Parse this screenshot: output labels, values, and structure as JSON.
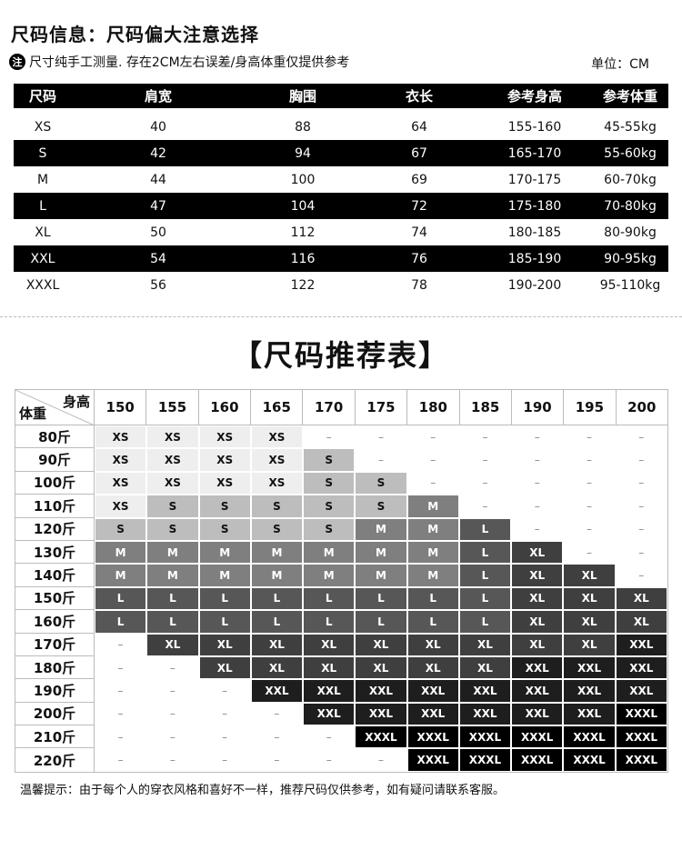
{
  "header": {
    "title": "尺码信息：尺码偏大注意选择",
    "note_icon_text": "注",
    "note": "尺寸纯手工测量. 存在2CM左右误差/身高体重仅提供参考",
    "unit": "单位：CM"
  },
  "size_table": {
    "columns": [
      "尺码",
      "肩宽",
      "胸围",
      "衣长",
      "参考身高",
      "参考体重"
    ],
    "rows": [
      [
        "XS",
        "40",
        "88",
        "64",
        "155-160",
        "45-55kg"
      ],
      [
        "S",
        "42",
        "94",
        "67",
        "165-170",
        "55-60kg"
      ],
      [
        "M",
        "44",
        "100",
        "69",
        "170-175",
        "60-70kg"
      ],
      [
        "L",
        "47",
        "104",
        "72",
        "175-180",
        "70-80kg"
      ],
      [
        "XL",
        "50",
        "112",
        "74",
        "180-185",
        "80-90kg"
      ],
      [
        "XXL",
        "54",
        "116",
        "76",
        "185-190",
        "90-95kg"
      ],
      [
        "XXXL",
        "56",
        "122",
        "78",
        "190-200",
        "95-110kg"
      ]
    ]
  },
  "recommend": {
    "title": "【尺码推荐表】",
    "corner_height": "身高",
    "corner_weight": "体重",
    "heights": [
      "150",
      "155",
      "160",
      "165",
      "170",
      "175",
      "180",
      "185",
      "190",
      "195",
      "200"
    ],
    "weights": [
      "80斤",
      "90斤",
      "100斤",
      "110斤",
      "120斤",
      "130斤",
      "140斤",
      "150斤",
      "160斤",
      "170斤",
      "180斤",
      "190斤",
      "200斤",
      "210斤",
      "220斤"
    ],
    "grid": [
      [
        "XS",
        "XS",
        "XS",
        "XS",
        "–",
        "–",
        "–",
        "–",
        "–",
        "–",
        "–"
      ],
      [
        "XS",
        "XS",
        "XS",
        "XS",
        "S",
        "–",
        "–",
        "–",
        "–",
        "–",
        "–"
      ],
      [
        "XS",
        "XS",
        "XS",
        "XS",
        "S",
        "S",
        "–",
        "–",
        "–",
        "–",
        "–"
      ],
      [
        "XS",
        "S",
        "S",
        "S",
        "S",
        "S",
        "M",
        "–",
        "–",
        "–",
        "–"
      ],
      [
        "S",
        "S",
        "S",
        "S",
        "S",
        "M",
        "M",
        "L",
        "–",
        "–",
        "–"
      ],
      [
        "M",
        "M",
        "M",
        "M",
        "M",
        "M",
        "M",
        "L",
        "XL",
        "–",
        "–"
      ],
      [
        "M",
        "M",
        "M",
        "M",
        "M",
        "M",
        "M",
        "L",
        "XL",
        "XL",
        "–"
      ],
      [
        "L",
        "L",
        "L",
        "L",
        "L",
        "L",
        "L",
        "L",
        "XL",
        "XL",
        "XL"
      ],
      [
        "L",
        "L",
        "L",
        "L",
        "L",
        "L",
        "L",
        "L",
        "XL",
        "XL",
        "XL"
      ],
      [
        "–",
        "XL",
        "XL",
        "XL",
        "XL",
        "XL",
        "XL",
        "XL",
        "XL",
        "XL",
        "XXL"
      ],
      [
        "–",
        "–",
        "XL",
        "XL",
        "XL",
        "XL",
        "XL",
        "XL",
        "XXL",
        "XXL",
        "XXL"
      ],
      [
        "–",
        "–",
        "–",
        "XXL",
        "XXL",
        "XXL",
        "XXL",
        "XXL",
        "XXL",
        "XXL",
        "XXL"
      ],
      [
        "–",
        "–",
        "–",
        "–",
        "XXL",
        "XXL",
        "XXL",
        "XXL",
        "XXL",
        "XXL",
        "XXXL"
      ],
      [
        "–",
        "–",
        "–",
        "–",
        "–",
        "XXXL",
        "XXXL",
        "XXXL",
        "XXXL",
        "XXXL",
        "XXXL"
      ],
      [
        "–",
        "–",
        "–",
        "–",
        "–",
        "–",
        "XXXL",
        "XXXL",
        "XXXL",
        "XXXL",
        "XXXL"
      ]
    ],
    "size_colors": {
      "XS": "#eeeeee",
      "S": "#bdbdbd",
      "M": "#7f7f7f",
      "L": "#575757",
      "XL": "#3f3f3f",
      "XXL": "#1e1e1e",
      "XXXL": "#000000"
    }
  },
  "footer": "温馨提示：由于每个人的穿衣风格和喜好不一样，推荐尺码仅供参考，如有疑问请联系客服。"
}
